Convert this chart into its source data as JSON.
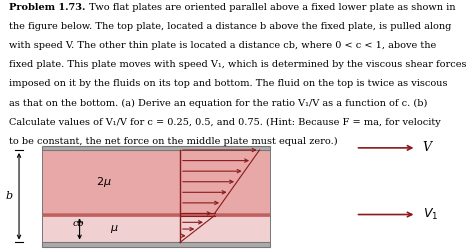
{
  "plate_color": "#aaaaaa",
  "top_region_color": "#e8a8a8",
  "bottom_region_color": "#f0d0d0",
  "mid_plate_color": "#c06060",
  "arrow_color": "#8b1a1a",
  "border_color": "#777777",
  "line1": "Problem 1.73.| Two flat plates are oriented parallel above a fixed lower plate as shown in",
  "line2": "the figure below. The top plate, located a distance b above the fixed plate, is pulled along",
  "line3": "with speed V. The other thin plate is located a distance cb, where 0 < c < 1, above the",
  "line4": "fixed plate. This plate moves with speed V₁, which is determined by the viscous shear forces",
  "line5": "imposed on it by the fluids on its top and bottom. The fluid on the top is twice as viscous",
  "line6": "as that on the bottom. (a) Derive an equation for the ratio V₁/V as a function of c. (b)",
  "line7": "Calculate values of V₁/V for c = 0.25, 0.5, and 0.75. (Hint: Because F = ma, for velocity",
  "line8": "to be constant, the net force on the middle plate must equal zero.)",
  "fig_width": 4.74,
  "fig_height": 2.5
}
